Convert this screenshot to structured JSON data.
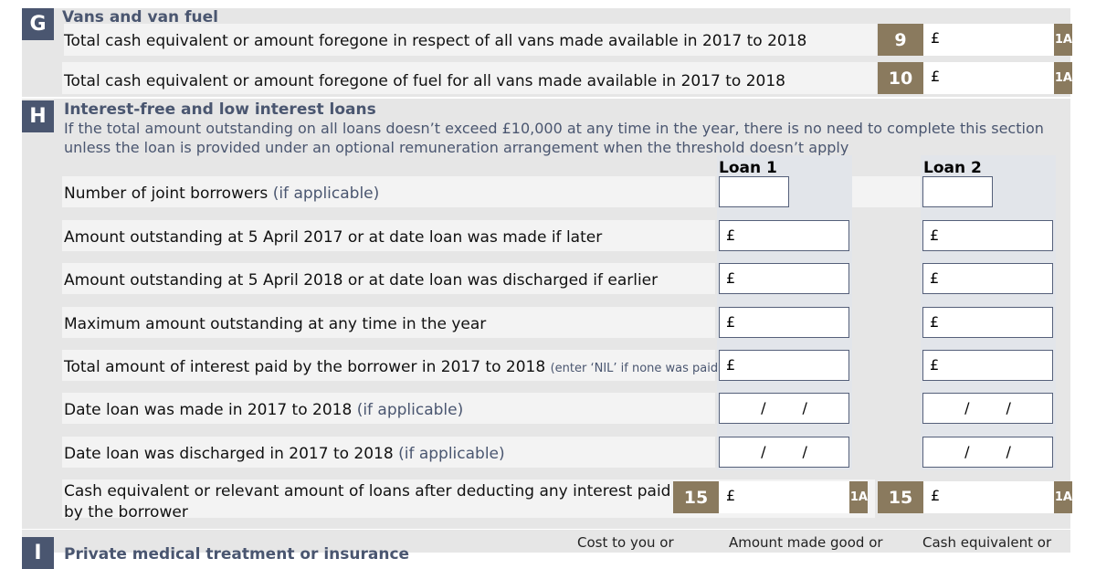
{
  "sectionG": {
    "letter": "G",
    "title": "Vans and van fuel",
    "rows": [
      {
        "label": "Total cash equivalent or amount foregone in respect of all vans made available in 2017 to 2018",
        "box": "9",
        "currency": "£",
        "tag": "1A"
      },
      {
        "label": "Total cash equivalent or amount foregone of fuel for all vans made available in 2017 to 2018",
        "box": "10",
        "currency": "£",
        "tag": "1A"
      }
    ]
  },
  "sectionH": {
    "letter": "H",
    "title": "Interest-free and low interest loans",
    "note1": "If the total amount outstanding on all loans doesn’t exceed £10,000 at any time in the year, there is no need to complete this section",
    "note2": "unless the loan is provided under an optional remuneration arrangement when the threshold doesn’t apply",
    "loan1": "Loan 1",
    "loan2": "Loan 2",
    "rows": [
      {
        "label": "Number of joint borrowers",
        "hint": "(if applicable)",
        "currency": ""
      },
      {
        "label": "Amount outstanding at 5 April 2017 or at date loan was made if later",
        "hint": "",
        "currency": "£"
      },
      {
        "label": "Amount outstanding at 5 April 2018 or at date loan was discharged if earlier",
        "hint": "",
        "currency": "£"
      },
      {
        "label": "Maximum amount outstanding at any time in the year",
        "hint": "",
        "currency": "£"
      },
      {
        "label": "Total amount of interest paid by the borrower in 2017 to 2018",
        "hint": "(enter ‘NIL’ if none was paid)",
        "currency": "£"
      },
      {
        "label": "Date loan was made in 2017 to 2018",
        "hint": "(if applicable)",
        "currency": "/   /"
      },
      {
        "label": "Date loan was discharged in 2017 to 2018",
        "hint": "(if applicable)",
        "currency": "/   /"
      }
    ],
    "final": {
      "label1": "Cash equivalent or relevant amount of loans after deducting any interest paid",
      "label2": "by the borrower",
      "box": "15",
      "currency": "£",
      "tag": "1A"
    }
  },
  "sectionI": {
    "letter": "I",
    "title": "Private medical treatment or insurance",
    "col1": "Cost to you or",
    "col2": "Amount made good or",
    "col3": "Cash equivalent or"
  }
}
